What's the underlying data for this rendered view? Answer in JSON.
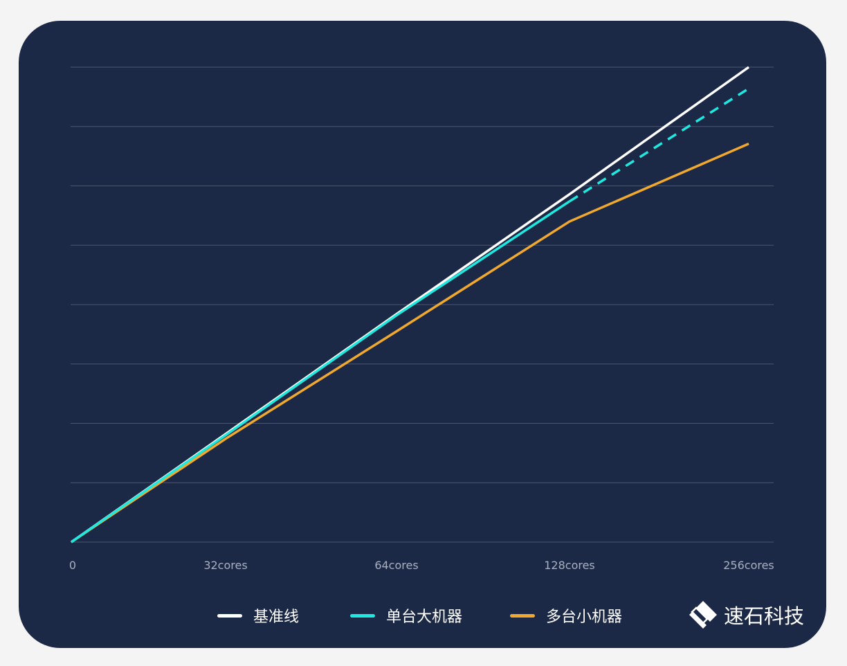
{
  "chart_data": {
    "type": "line",
    "title": "",
    "xlabel": "",
    "ylabel": "",
    "categories": [
      "0",
      "32cores",
      "64cores",
      "128cores",
      "256cores"
    ],
    "ylim": [
      0,
      8
    ],
    "y_ticks_labeled": false,
    "grid": true,
    "legend_placement": "bottom",
    "series": [
      {
        "name": "基准线",
        "color": "#ffffff",
        "values": [
          0,
          1.82,
          3.84,
          5.86,
          8.0
        ],
        "style": "solid"
      },
      {
        "name": "单台大机器",
        "color": "#1de9e0",
        "values": [
          0,
          1.8,
          3.82,
          5.74,
          7.64
        ],
        "style": "solid-then-dashed",
        "dashed_from_category": "128cores"
      },
      {
        "name": "多台小机器",
        "color": "#f0a92e",
        "values": [
          0,
          1.74,
          3.55,
          5.4,
          6.71
        ],
        "style": "solid"
      }
    ]
  },
  "colors": {
    "background": "#1c2946",
    "grid": "#4a5670",
    "tick_label": "#a9b0bf"
  },
  "logo": {
    "text": "速石科技",
    "icon": "diamond-logo-icon"
  }
}
